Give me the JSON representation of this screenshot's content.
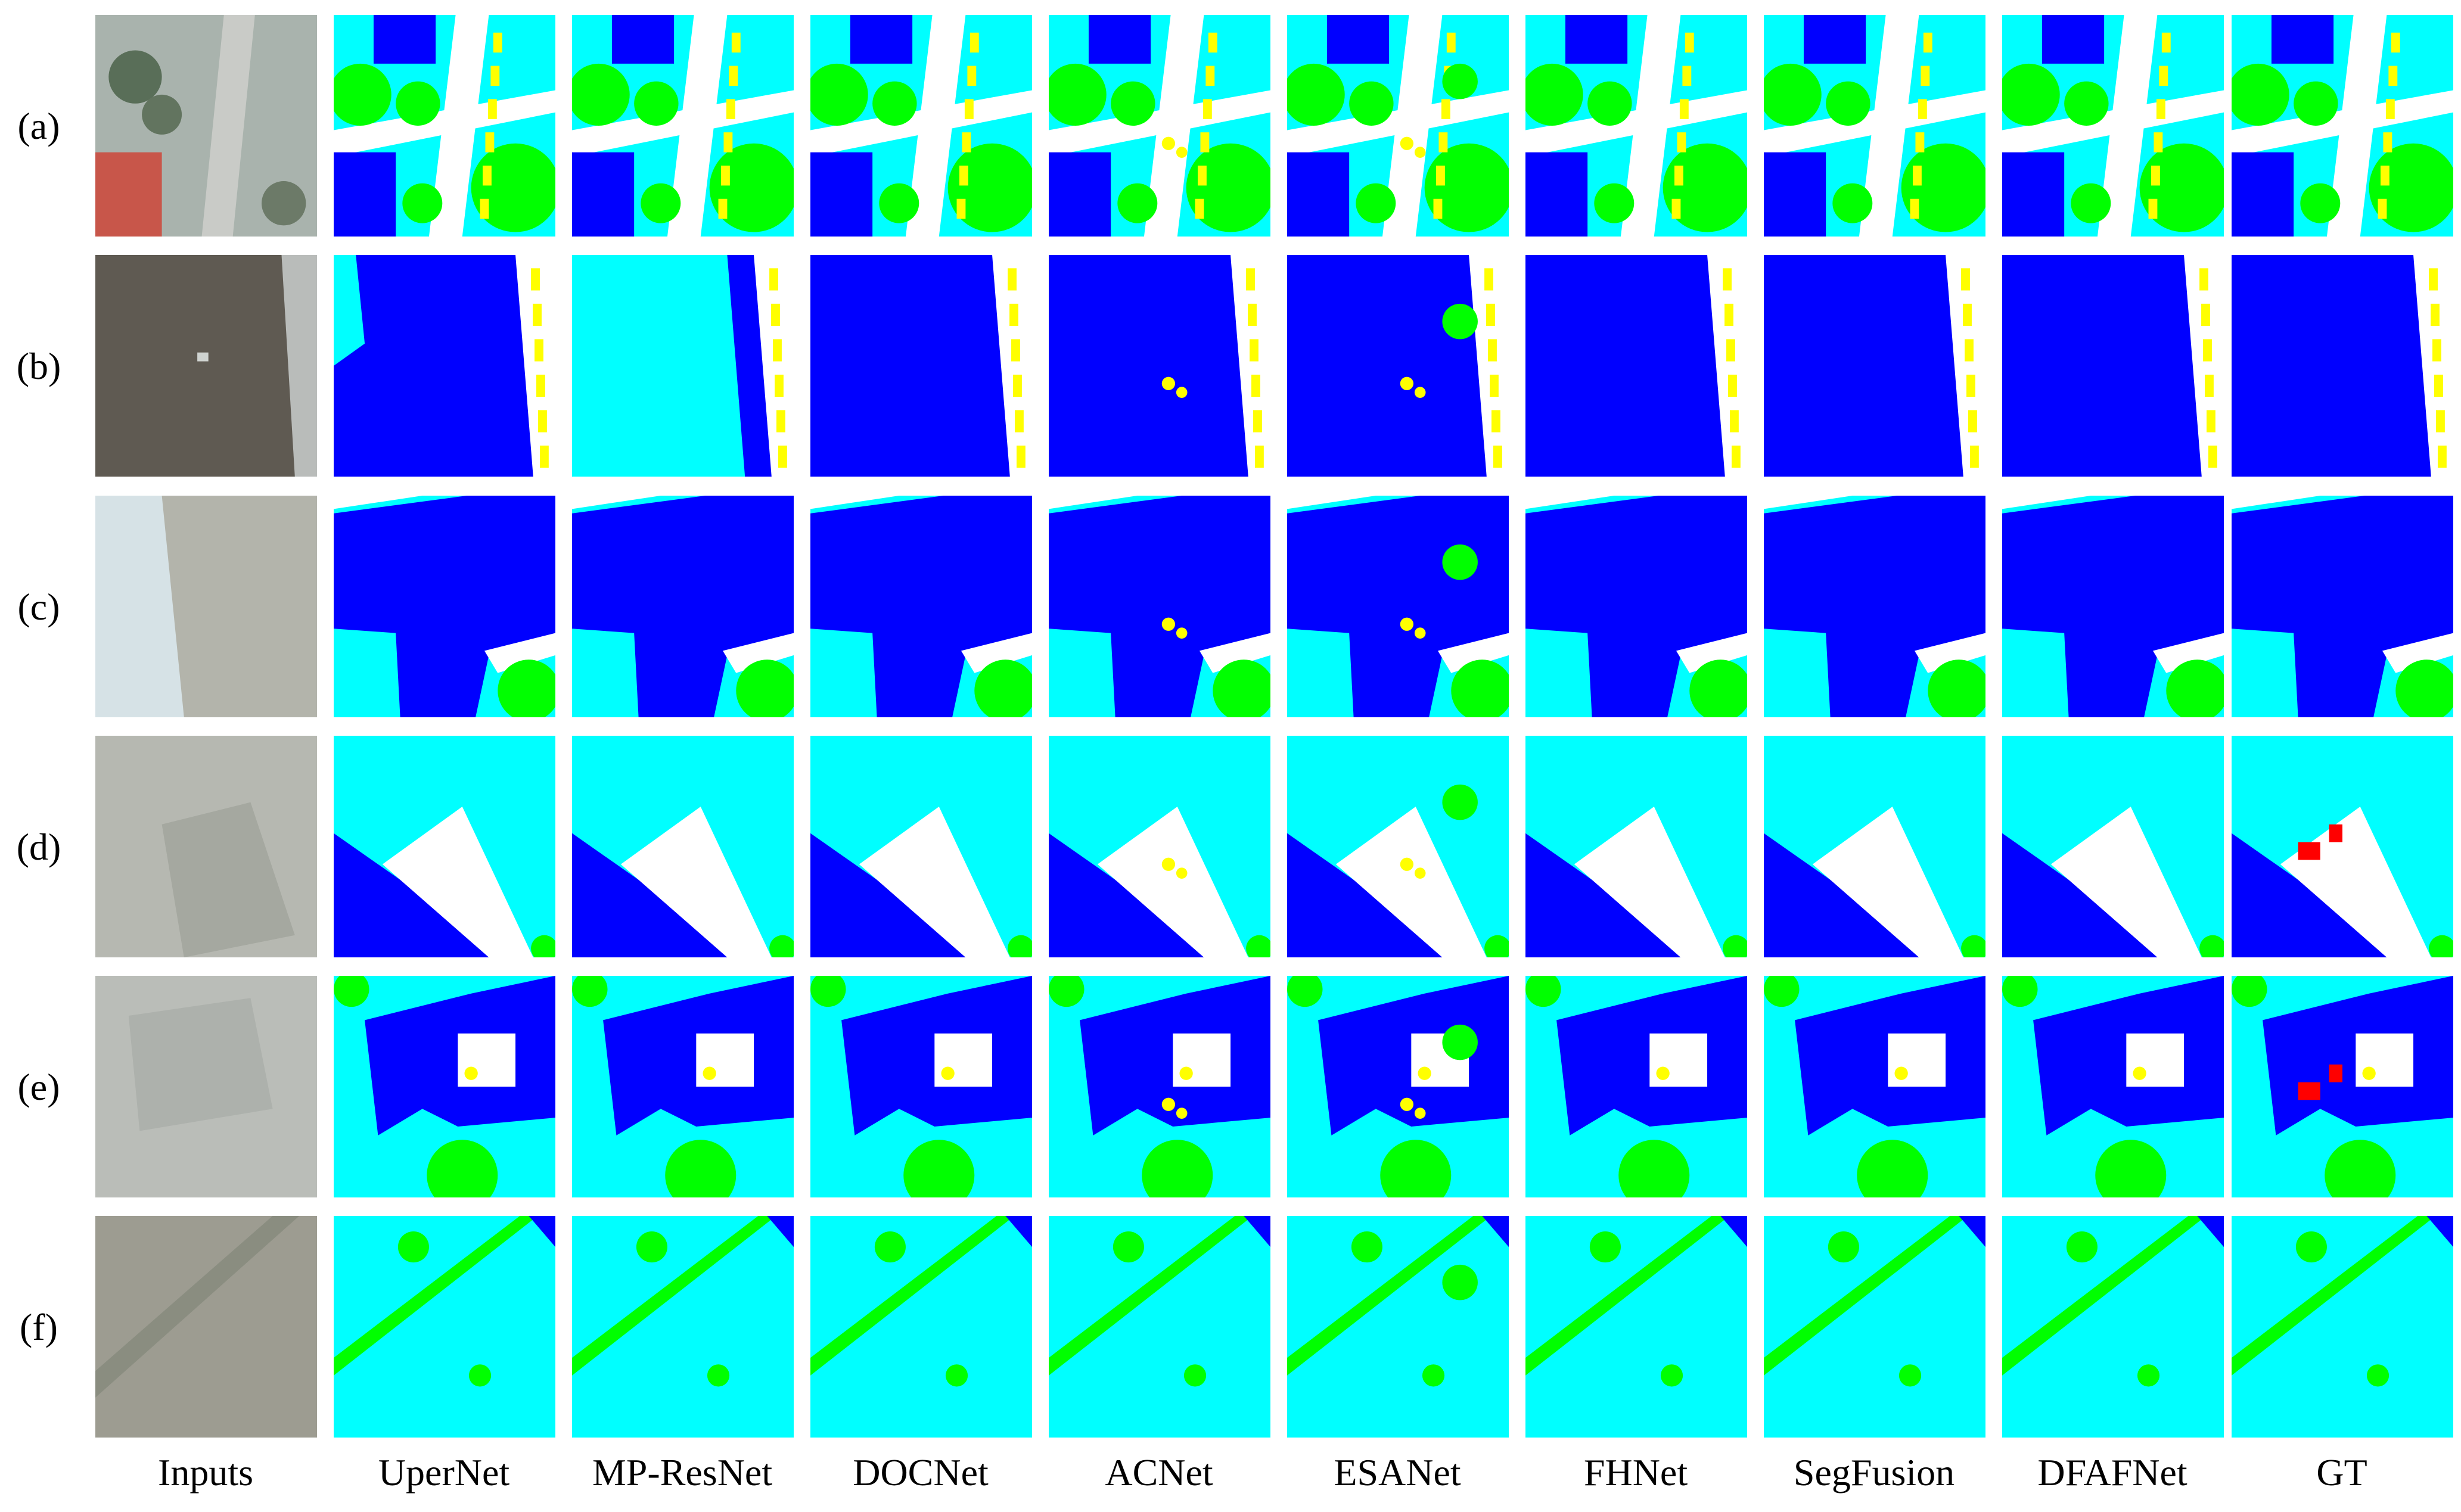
{
  "figure": {
    "rows": [
      {
        "id": "a",
        "label": "(a)"
      },
      {
        "id": "b",
        "label": "(b)"
      },
      {
        "id": "c",
        "label": "(c)"
      },
      {
        "id": "d",
        "label": "(d)"
      },
      {
        "id": "e",
        "label": "(e)"
      },
      {
        "id": "f",
        "label": "(f)"
      }
    ],
    "columns": [
      {
        "id": "inputs",
        "label": "Inputs"
      },
      {
        "id": "upernet",
        "label": "UperNet"
      },
      {
        "id": "mp-resnet",
        "label": "MP-ResNet"
      },
      {
        "id": "docnet",
        "label": "DOCNet"
      },
      {
        "id": "acnet",
        "label": "ACNet"
      },
      {
        "id": "esanet",
        "label": "ESANet"
      },
      {
        "id": "fhnet",
        "label": "FHNet"
      },
      {
        "id": "segfusion",
        "label": "SegFusion"
      },
      {
        "id": "dfafnet",
        "label": "DFAFNet"
      },
      {
        "id": "gt",
        "label": "GT"
      }
    ],
    "class_colors": {
      "impervious": "#ffffff",
      "building": "#0000ff",
      "low_vegetation": "#00ffff",
      "tree": "#00ff00",
      "car": "#ffff00",
      "clutter": "#ff0000"
    }
  }
}
